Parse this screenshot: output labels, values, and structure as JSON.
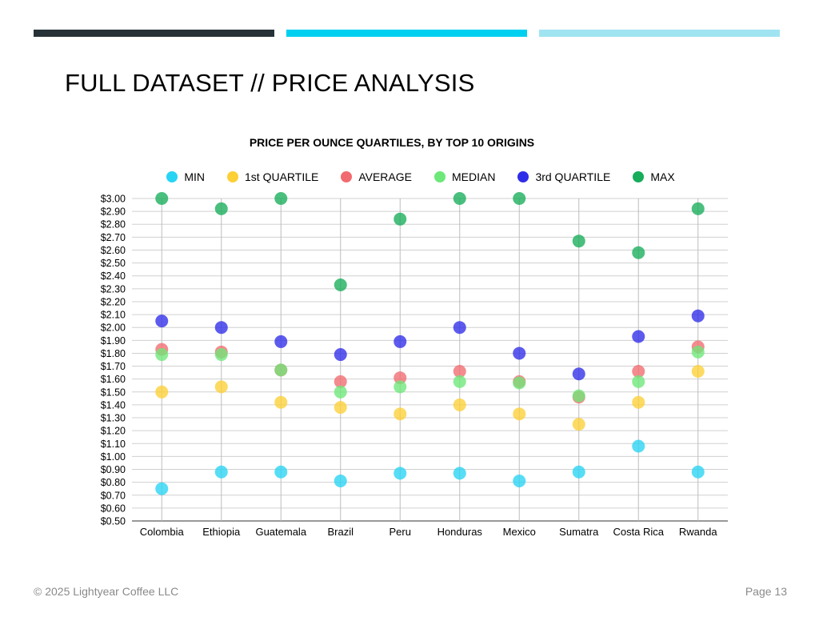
{
  "page": {
    "title": "FULL DATASET // PRICE ANALYSIS",
    "footer_left": "© 2025 Lightyear Coffee LLC",
    "footer_right": "Page 13"
  },
  "colors": {
    "header_bar_1": "#263238",
    "header_bar_2": "#00d0f0",
    "header_bar_3": "#a0e4f2"
  },
  "chart_data": {
    "type": "scatter",
    "title": "PRICE PER OUNCE QUARTILES, BY TOP 10 ORIGINS",
    "categories": [
      "Colombia",
      "Ethiopia",
      "Guatemala",
      "Brazil",
      "Peru",
      "Honduras",
      "Mexico",
      "Sumatra",
      "Costa Rica",
      "Rwanda"
    ],
    "ylim": [
      0.5,
      3.0
    ],
    "y_tick_step": 0.1,
    "y_tick_format": "$0.00",
    "grid": true,
    "legend_position": "top",
    "series": [
      {
        "name": "MIN",
        "color": "#28d4f4",
        "values": [
          0.75,
          0.88,
          0.88,
          0.81,
          0.87,
          0.87,
          0.81,
          0.88,
          1.08,
          0.88
        ]
      },
      {
        "name": "1st QUARTILE",
        "color": "#fdd036",
        "values": [
          1.5,
          1.54,
          1.42,
          1.38,
          1.33,
          1.4,
          1.33,
          1.25,
          1.42,
          1.66
        ]
      },
      {
        "name": "AVERAGE",
        "color": "#f16a6f",
        "values": [
          1.83,
          1.81,
          1.67,
          1.58,
          1.61,
          1.66,
          1.58,
          1.46,
          1.66,
          1.85
        ]
      },
      {
        "name": "MEDIAN",
        "color": "#6de879",
        "values": [
          1.79,
          1.79,
          1.67,
          1.5,
          1.54,
          1.58,
          1.57,
          1.47,
          1.58,
          1.81
        ]
      },
      {
        "name": "3rd QUARTILE",
        "color": "#2f2de8",
        "values": [
          2.05,
          2.0,
          1.89,
          1.79,
          1.89,
          2.0,
          1.8,
          1.64,
          1.93,
          2.09
        ]
      },
      {
        "name": "MAX",
        "color": "#17ad5a",
        "values": [
          3.0,
          2.92,
          3.0,
          2.33,
          2.84,
          3.0,
          3.0,
          2.67,
          2.58,
          2.92
        ]
      }
    ]
  }
}
